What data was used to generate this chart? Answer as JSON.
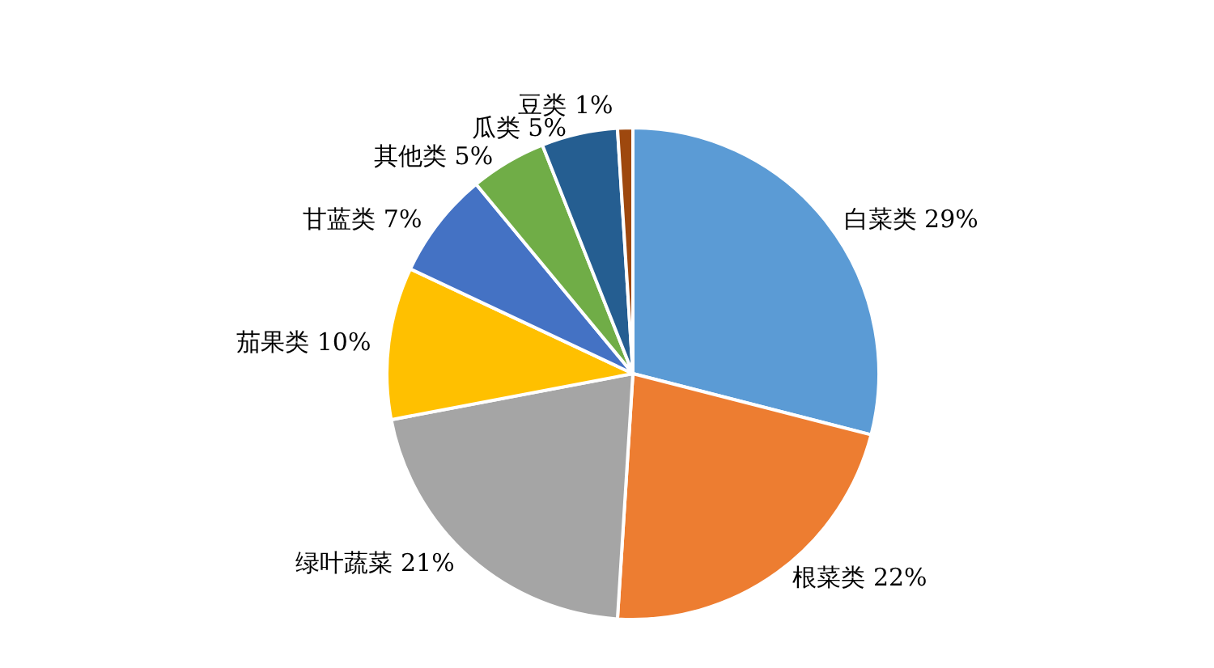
{
  "chart_data": {
    "type": "pie",
    "categories": [
      "白菜类",
      "根菜类",
      "绿叶蔬菜",
      "茄果类",
      "甘蓝类",
      "其他类",
      "瓜类",
      "豆类"
    ],
    "values": [
      29,
      22,
      21,
      10,
      7,
      5,
      5,
      1
    ],
    "value_labels": [
      "29%",
      "22%",
      "21%",
      "10%",
      "7%",
      "5%",
      "5%",
      "1%"
    ],
    "colors": [
      "#5b9bd5",
      "#ed7d31",
      "#a5a5a5",
      "#ffc000",
      "#4472c4",
      "#70ad47",
      "#255e91",
      "#9e480e"
    ],
    "legend": false
  }
}
